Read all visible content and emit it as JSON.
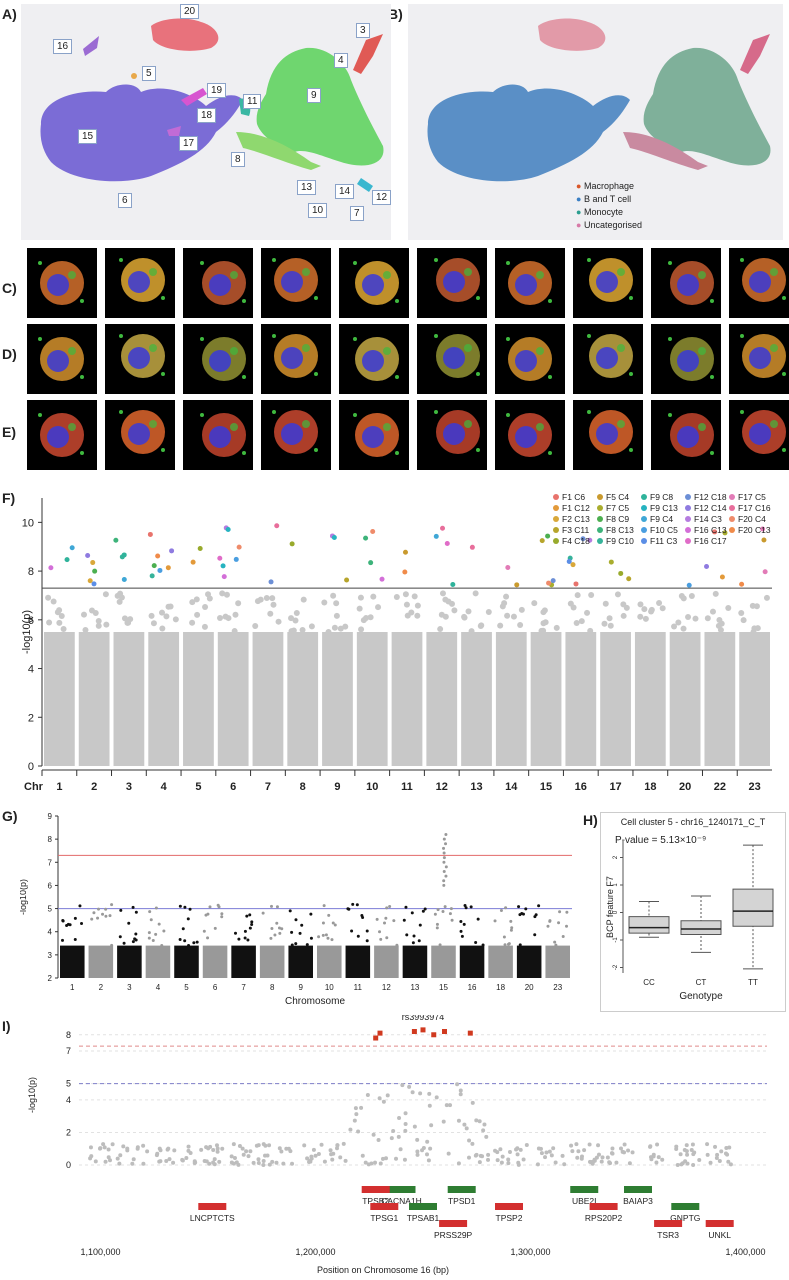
{
  "panel_labels": {
    "A": "A)",
    "B": "B)",
    "C": "C)",
    "D": "D)",
    "E": "E)",
    "F": "F)",
    "G": "G)",
    "H": "H)",
    "I": "I)"
  },
  "umap_a": {
    "clusters": [
      "20",
      "16",
      "5",
      "3",
      "4",
      "9",
      "19",
      "18",
      "11",
      "15",
      "17",
      "8",
      "13",
      "10",
      "14",
      "7",
      "12",
      "6"
    ]
  },
  "umap_b": {
    "legend": [
      {
        "label": "Macrophage",
        "color": "#d9572a"
      },
      {
        "label": "B and T cell",
        "color": "#3b7fc4"
      },
      {
        "label": "Monocyte",
        "color": "#2a9d8f"
      },
      {
        "label": "Uncategorised",
        "color": "#d77aa8"
      }
    ]
  },
  "images": {
    "row_c": [
      "c1",
      "c2",
      "c3",
      "c4",
      "c5",
      "c6",
      "c7",
      "c8",
      "c9",
      "c10"
    ],
    "row_d": [
      "d1",
      "d2",
      "d3",
      "d4",
      "d5",
      "d6",
      "d7",
      "d8",
      "d9",
      "d10"
    ],
    "row_e": [
      "e1",
      "e2",
      "e3",
      "e4",
      "e5",
      "e6",
      "e7",
      "e8",
      "e9",
      "e10"
    ]
  },
  "chart_data": [
    {
      "panel": "F",
      "type": "scatter",
      "ylabel": "-log10(p)",
      "xlabel": "Chr",
      "ylim": [
        0,
        11
      ],
      "yticks": [
        0,
        2,
        4,
        6,
        8,
        10
      ],
      "threshold": 7.3,
      "chromosome_labels": [
        "1",
        "2",
        "3",
        "4",
        "5",
        "6",
        "7",
        "8",
        "9",
        "10",
        "11",
        "12",
        "13",
        "14",
        "15",
        "16",
        "17",
        "18",
        "20",
        "22",
        "23"
      ],
      "legend": [
        {
          "name": "F1 C6",
          "color": "#e8736c"
        },
        {
          "name": "F5 C4",
          "color": "#c99a2e"
        },
        {
          "name": "F9 C8",
          "color": "#2fb39b"
        },
        {
          "name": "F12 C18",
          "color": "#6c8fd6"
        },
        {
          "name": "F17 C5",
          "color": "#e27bb7"
        },
        {
          "name": "F1 C12",
          "color": "#e39a3a"
        },
        {
          "name": "F7 C5",
          "color": "#a9ad2e"
        },
        {
          "name": "F9 C13",
          "color": "#26b3c0"
        },
        {
          "name": "F12 C14",
          "color": "#8f7be0"
        },
        {
          "name": "F17 C16",
          "color": "#e86e9b"
        },
        {
          "name": "F2 C13",
          "color": "#d9a83a"
        },
        {
          "name": "F8 C9",
          "color": "#4caf50"
        },
        {
          "name": "F9 C4",
          "color": "#3fa7d6"
        },
        {
          "name": "F14 C3",
          "color": "#b57ce0"
        },
        {
          "name": "F20 C4",
          "color": "#ef8b6a"
        },
        {
          "name": "F3 C11",
          "color": "#b7a52c"
        },
        {
          "name": "F8 C13",
          "color": "#3db37a"
        },
        {
          "name": "F10 C5",
          "color": "#4a9ee0"
        },
        {
          "name": "F16 C13",
          "color": "#d36fd8"
        },
        {
          "name": "F20 C13",
          "color": "#f08b4a"
        },
        {
          "name": "F4 C18",
          "color": "#98aa2c"
        },
        {
          "name": "F9 C10",
          "color": "#36b39a"
        },
        {
          "name": "F11 C3",
          "color": "#5b8ee6"
        },
        {
          "name": "F16 C17",
          "color": "#e06cc8"
        }
      ]
    },
    {
      "panel": "G",
      "type": "scatter",
      "xlabel": "Chromosome",
      "ylabel": "-log10(p)",
      "ylim": [
        2,
        9
      ],
      "yticks": [
        2,
        3,
        4,
        5,
        6,
        7,
        8,
        9
      ],
      "thresholds": [
        {
          "value": 7.3,
          "color": "#e26a6a"
        },
        {
          "value": 5.0,
          "color": "#7b7bd6"
        }
      ],
      "chromosome_labels": [
        "1",
        "2",
        "3",
        "4",
        "5",
        "6",
        "7",
        "8",
        "9",
        "10",
        "11",
        "12",
        "13",
        "15",
        "16",
        "18",
        "20",
        "23"
      ]
    },
    {
      "panel": "H",
      "type": "box",
      "title": "Cell cluster 5 - chr16_1240171_C_T",
      "annotation": "P-value = 5.13×10⁻⁹",
      "xlabel": "Genotype",
      "ylabel": "BCP feature F7",
      "ylim": [
        -2.2,
        2.6
      ],
      "yticks": [
        -2,
        -1,
        0,
        1,
        2
      ],
      "categories": [
        "CC",
        "CT",
        "TT"
      ],
      "boxes": [
        {
          "min": -0.9,
          "q1": -0.75,
          "median": -0.55,
          "q3": -0.15,
          "max": 0.4
        },
        {
          "min": -1.45,
          "q1": -0.8,
          "median": -0.6,
          "q3": -0.3,
          "max": 0.6
        },
        {
          "min": -2.05,
          "q1": -0.5,
          "median": 0.05,
          "q3": 0.85,
          "max": 2.45
        }
      ]
    },
    {
      "panel": "I",
      "type": "scatter",
      "xlabel": "Position on Chromosome 16 (bp)",
      "ylabel": "-log10(p)",
      "xlim": [
        1090000,
        1410000
      ],
      "xticks": [
        "1,100,000",
        "1,200,000",
        "1,300,000",
        "1,400,000"
      ],
      "yticks": [
        0,
        2,
        4,
        5,
        7,
        8
      ],
      "thresholds": [
        7.3,
        5.0
      ],
      "top_snp": "rs3993974",
      "genes": [
        {
          "name": "CACNA1H",
          "pos": 1240000,
          "strand": "+",
          "row": 1
        },
        {
          "name": "TPSB2",
          "pos": 1228000,
          "strand": "-",
          "row": 1
        },
        {
          "name": "TPSD1",
          "pos": 1268000,
          "strand": "+",
          "row": 1
        },
        {
          "name": "UBE2I",
          "pos": 1325000,
          "strand": "+",
          "row": 1
        },
        {
          "name": "BAIAP3",
          "pos": 1350000,
          "strand": "+",
          "row": 1
        },
        {
          "name": "LNCPTCTS",
          "pos": 1152000,
          "strand": "-",
          "row": 2
        },
        {
          "name": "TPSG1",
          "pos": 1232000,
          "strand": "-",
          "row": 2
        },
        {
          "name": "TPSAB1",
          "pos": 1250000,
          "strand": "+",
          "row": 2
        },
        {
          "name": "TPSP2",
          "pos": 1290000,
          "strand": "-",
          "row": 2
        },
        {
          "name": "RPS20P2",
          "pos": 1334000,
          "strand": "-",
          "row": 2
        },
        {
          "name": "GNPTG",
          "pos": 1372000,
          "strand": "+",
          "row": 2
        },
        {
          "name": "PRSS29P",
          "pos": 1264000,
          "strand": "-",
          "row": 3
        },
        {
          "name": "TSR3",
          "pos": 1364000,
          "strand": "-",
          "row": 3
        },
        {
          "name": "UNKL",
          "pos": 1388000,
          "strand": "-",
          "row": 3
        }
      ]
    }
  ]
}
